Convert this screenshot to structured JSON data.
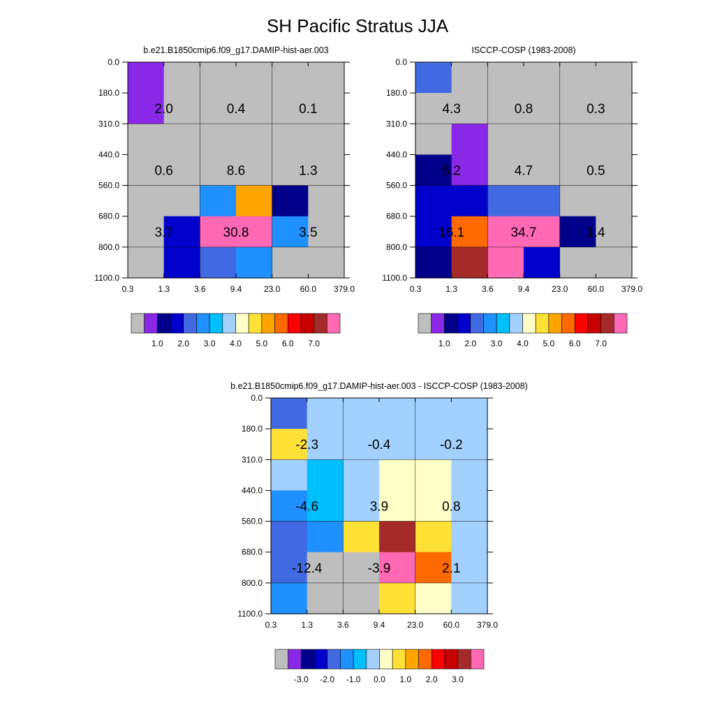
{
  "figure": {
    "title": "SH Pacific Stratus JJA"
  },
  "chart_data": [
    {
      "type": "heatmap",
      "title": "b.e21.B1850cmip6.f09_g17.DAMIP-hist-aer.003",
      "xticks": [
        "0.3",
        "1.3",
        "3.6",
        "9.4",
        "23.0",
        "60.0",
        "379.0"
      ],
      "yticks": [
        "0.0",
        "180.0",
        "310.0",
        "440.0",
        "560.0",
        "680.0",
        "800.0",
        "1100.0"
      ],
      "cell_colors": [
        [
          "#8a28e8",
          "#bebebe",
          "#bebebe",
          "#bebebe",
          "#bebebe",
          "#bebebe"
        ],
        [
          "#8a28e8",
          "#bebebe",
          "#bebebe",
          "#bebebe",
          "#bebebe",
          "#bebebe"
        ],
        [
          "#bebebe",
          "#bebebe",
          "#bebebe",
          "#bebebe",
          "#bebebe",
          "#bebebe"
        ],
        [
          "#bebebe",
          "#bebebe",
          "#bebebe",
          "#bebebe",
          "#bebebe",
          "#bebebe"
        ],
        [
          "#bebebe",
          "#bebebe",
          "#1e90ff",
          "#ffa500",
          "#00008b",
          "#bebebe"
        ],
        [
          "#bebebe",
          "#0000cd",
          "#ff69b4",
          "#ff69b4",
          "#1e90ff",
          "#bebebe"
        ],
        [
          "#bebebe",
          "#0000cd",
          "#4169e1",
          "#1e90ff",
          "#bebebe",
          "#bebebe"
        ]
      ],
      "annotations": [
        [
          "2.0",
          "0.4",
          "0.1"
        ],
        [
          "0.6",
          "8.6",
          "1.3"
        ],
        [
          "3.7",
          "30.8",
          "3.5"
        ]
      ],
      "colorbar": {
        "colors": [
          "#bebebe",
          "#8a28e8",
          "#00008b",
          "#0000cd",
          "#4169e1",
          "#1e90ff",
          "#00bfff",
          "#a3d1ff",
          "#ffffc8",
          "#ffe135",
          "#ffa500",
          "#ff6a00",
          "#ff0000",
          "#c80000",
          "#a52a2a",
          "#ff69b4"
        ],
        "labels": [
          "1.0",
          "2.0",
          "3.0",
          "4.0",
          "5.0",
          "6.0",
          "7.0"
        ]
      }
    },
    {
      "type": "heatmap",
      "title": "ISCCP-COSP (1983-2008)",
      "xticks": [
        "0.3",
        "1.3",
        "3.6",
        "9.4",
        "23.0",
        "60.0",
        "379.0"
      ],
      "yticks": [
        "0.0",
        "180.0",
        "310.0",
        "440.0",
        "560.0",
        "680.0",
        "800.0",
        "1100.0"
      ],
      "cell_colors": [
        [
          "#4169e1",
          "#bebebe",
          "#bebebe",
          "#bebebe",
          "#bebebe",
          "#bebebe"
        ],
        [
          "#bebebe",
          "#bebebe",
          "#bebebe",
          "#bebebe",
          "#bebebe",
          "#bebebe"
        ],
        [
          "#bebebe",
          "#8a28e8",
          "#bebebe",
          "#bebebe",
          "#bebebe",
          "#bebebe"
        ],
        [
          "#00008b",
          "#8a28e8",
          "#bebebe",
          "#bebebe",
          "#bebebe",
          "#bebebe"
        ],
        [
          "#0000cd",
          "#0000cd",
          "#4169e1",
          "#4169e1",
          "#bebebe",
          "#bebebe"
        ],
        [
          "#0000cd",
          "#ff6a00",
          "#ff69b4",
          "#ff69b4",
          "#00008b",
          "#bebebe"
        ],
        [
          "#00008b",
          "#a52a2a",
          "#ff69b4",
          "#0000cd",
          "#bebebe",
          "#bebebe"
        ]
      ],
      "annotations": [
        [
          "4.3",
          "0.8",
          "0.3"
        ],
        [
          "5.2",
          "4.7",
          "0.5"
        ],
        [
          "16.1",
          "34.7",
          "1.4"
        ]
      ],
      "colorbar": {
        "colors": [
          "#bebebe",
          "#8a28e8",
          "#00008b",
          "#0000cd",
          "#4169e1",
          "#1e90ff",
          "#00bfff",
          "#a3d1ff",
          "#ffffc8",
          "#ffe135",
          "#ffa500",
          "#ff6a00",
          "#ff0000",
          "#c80000",
          "#a52a2a",
          "#ff69b4"
        ],
        "labels": [
          "1.0",
          "2.0",
          "3.0",
          "4.0",
          "5.0",
          "6.0",
          "7.0"
        ]
      }
    },
    {
      "type": "heatmap",
      "title": "b.e21.B1850cmip6.f09_g17.DAMIP-hist-aer.003 - ISCCP-COSP (1983-2008)",
      "xticks": [
        "0.3",
        "1.3",
        "3.6",
        "9.4",
        "23.0",
        "60.0",
        "379.0"
      ],
      "yticks": [
        "0.0",
        "180.0",
        "310.0",
        "440.0",
        "560.0",
        "680.0",
        "800.0",
        "1100.0"
      ],
      "cell_colors": [
        [
          "#4169e1",
          "#a3d1ff",
          "#a3d1ff",
          "#a3d1ff",
          "#a3d1ff",
          "#a3d1ff"
        ],
        [
          "#ffe135",
          "#a3d1ff",
          "#a3d1ff",
          "#a3d1ff",
          "#a3d1ff",
          "#a3d1ff"
        ],
        [
          "#a3d1ff",
          "#00bfff",
          "#a3d1ff",
          "#ffffc8",
          "#ffffc8",
          "#a3d1ff"
        ],
        [
          "#1e90ff",
          "#00bfff",
          "#a3d1ff",
          "#ffffc8",
          "#ffffc8",
          "#a3d1ff"
        ],
        [
          "#4169e1",
          "#1e90ff",
          "#ffe135",
          "#a52a2a",
          "#ffe135",
          "#a3d1ff"
        ],
        [
          "#4169e1",
          "#bebebe",
          "#bebebe",
          "#ff69b4",
          "#ff6a00",
          "#a3d1ff"
        ],
        [
          "#1e90ff",
          "#bebebe",
          "#bebebe",
          "#ffe135",
          "#ffffc8",
          "#a3d1ff"
        ]
      ],
      "annotations": [
        [
          "-2.3",
          "-0.4",
          "-0.2"
        ],
        [
          "-4.6",
          "3.9",
          "0.8"
        ],
        [
          "-12.4",
          "-3.9",
          "2.1"
        ]
      ],
      "colorbar": {
        "colors": [
          "#bebebe",
          "#8a28e8",
          "#00008b",
          "#0000cd",
          "#4169e1",
          "#1e90ff",
          "#00bfff",
          "#a3d1ff",
          "#ffffc8",
          "#ffe135",
          "#ffa500",
          "#ff6a00",
          "#ff0000",
          "#c80000",
          "#a52a2a",
          "#ff69b4"
        ],
        "labels": [
          "-3.0",
          "-2.0",
          "-1.0",
          "0.0",
          "1.0",
          "2.0",
          "3.0"
        ]
      }
    }
  ]
}
